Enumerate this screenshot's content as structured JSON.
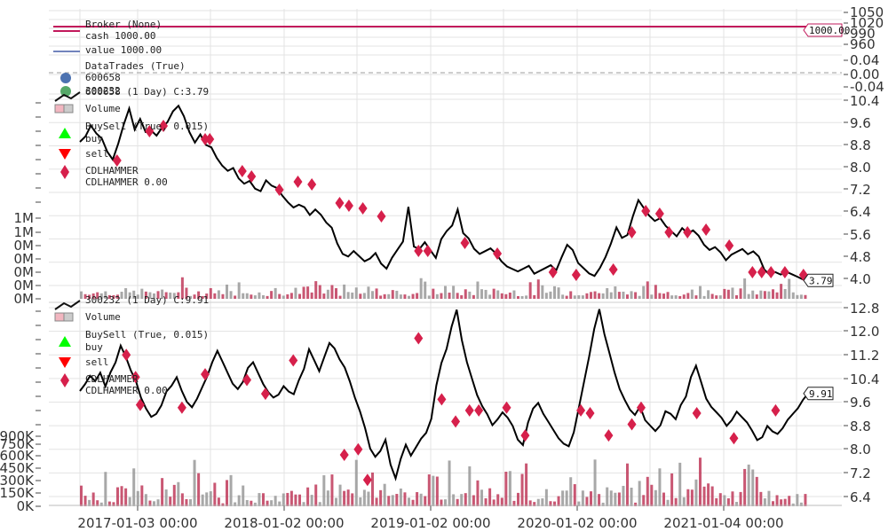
{
  "chart_data": [
    {
      "type": "line",
      "panel": "broker",
      "legend": [
        "Broker (None)",
        "cash 1000.00",
        "value 1000.00"
      ],
      "yticks": [
        "1050",
        "1020",
        "990",
        "960"
      ],
      "series": [
        {
          "name": "cash",
          "color": "#c2185b",
          "values": [
            1000,
            1000
          ]
        },
        {
          "name": "value",
          "color": "#1f3a93",
          "values": [
            1000,
            1000
          ]
        }
      ],
      "last_value_label": "1000.00",
      "ylim": [
        950,
        1050
      ]
    },
    {
      "type": "scatter",
      "panel": "datatrades",
      "legend": [
        "DataTrades (True)",
        "600658",
        "300232"
      ],
      "legend_colors": [
        "#4c72b0",
        "#55a868"
      ],
      "yticks": [
        "0.04",
        "0.00",
        "-0.04"
      ],
      "baseline": 0.0,
      "ylim": [
        -0.05,
        0.05
      ]
    },
    {
      "type": "line",
      "panel": "600658",
      "legend": [
        "600658 (1 Day) C:3.79",
        "Volume",
        "BuySell (True, 0.015)",
        "buy",
        "sell",
        "CDLHAMMER",
        "CDLHAMMER 0.00"
      ],
      "yticks": [
        "10.4",
        "9.6",
        "8.8",
        "8.0",
        "7.2",
        "6.4",
        "5.6",
        "4.8",
        "4.0"
      ],
      "volume_ticks": [
        "1M",
        "1M",
        "0M",
        "0M",
        "0M",
        "0M",
        "0M"
      ],
      "last_value_label": "3.79",
      "ylim": [
        3.6,
        10.6
      ],
      "close": [
        9.0,
        9.2,
        9.6,
        9.3,
        9.1,
        8.6,
        8.3,
        8.9,
        9.6,
        10.2,
        9.4,
        9.8,
        9.3,
        9.5,
        9.3,
        9.6,
        9.8,
        10.2,
        10.4,
        10.0,
        9.4,
        9.0,
        9.3,
        8.9,
        8.8,
        8.4,
        8.1,
        7.9,
        8.0,
        7.6,
        7.4,
        7.5,
        7.2,
        7.1,
        7.5,
        7.3,
        7.2,
        6.9,
        6.8,
        6.6,
        6.7,
        6.6,
        6.3,
        6.5,
        6.3,
        6.0,
        5.8,
        5.2,
        4.8,
        4.7,
        4.9,
        4.7,
        4.5,
        4.6,
        4.8,
        4.4,
        4.2,
        4.6,
        4.9,
        5.2,
        6.5,
        5.0,
        4.9,
        5.3,
        5.0,
        4.7,
        5.4,
        5.7,
        5.9,
        6.5,
        5.6,
        5.4,
        5.0,
        4.8,
        4.9,
        5.0,
        4.8,
        4.5,
        4.3,
        4.2,
        4.1,
        4.2,
        4.3,
        4.0,
        4.1,
        4.2,
        4.3,
        4.1,
        4.6,
        5.2,
        5.0,
        4.5,
        4.3,
        4.1,
        4.0,
        4.3,
        4.7,
        5.2,
        5.8,
        5.4,
        5.5,
        6.2,
        6.8,
        6.5,
        6.2,
        6.0,
        6.1,
        5.8,
        5.6,
        5.4,
        5.7,
        5.5,
        5.6,
        5.4,
        5.2,
        5.0,
        5.1,
        4.9,
        4.6,
        4.8,
        4.9,
        5.0,
        4.8,
        4.9,
        4.7,
        4.2,
        4.0,
        4.1,
        4.0,
        4.1,
        4.0,
        3.9,
        3.8,
        3.79
      ],
      "markers": [
        {
          "i": 8,
          "y": 8.3
        },
        {
          "i": 15,
          "y": 9.4
        },
        {
          "i": 18,
          "y": 9.6
        },
        {
          "i": 27,
          "y": 9.1
        },
        {
          "i": 28,
          "y": 9.1
        },
        {
          "i": 35,
          "y": 7.9
        },
        {
          "i": 37,
          "y": 7.7
        },
        {
          "i": 43,
          "y": 7.2
        },
        {
          "i": 47,
          "y": 7.5
        },
        {
          "i": 50,
          "y": 7.4
        },
        {
          "i": 56,
          "y": 6.7
        },
        {
          "i": 58,
          "y": 6.6
        },
        {
          "i": 61,
          "y": 6.5
        },
        {
          "i": 65,
          "y": 6.2
        },
        {
          "i": 73,
          "y": 4.9
        },
        {
          "i": 75,
          "y": 4.9
        },
        {
          "i": 83,
          "y": 5.2
        },
        {
          "i": 90,
          "y": 4.8
        },
        {
          "i": 102,
          "y": 4.1
        },
        {
          "i": 107,
          "y": 4.0
        },
        {
          "i": 115,
          "y": 4.2
        },
        {
          "i": 119,
          "y": 5.6
        },
        {
          "i": 122,
          "y": 6.4
        },
        {
          "i": 125,
          "y": 6.3
        },
        {
          "i": 127,
          "y": 5.6
        },
        {
          "i": 131,
          "y": 5.6
        },
        {
          "i": 135,
          "y": 5.7
        },
        {
          "i": 140,
          "y": 5.1
        },
        {
          "i": 145,
          "y": 4.1
        },
        {
          "i": 147,
          "y": 4.1
        },
        {
          "i": 149,
          "y": 4.1
        },
        {
          "i": 152,
          "y": 4.1
        },
        {
          "i": 156,
          "y": 4.0
        }
      ]
    },
    {
      "type": "line",
      "panel": "300232",
      "legend": [
        "300232 (1 Day) C:9.91",
        "Volume",
        "BuySell (True, 0.015)",
        "buy",
        "sell",
        "CDLHAMMER",
        "CDLHAMMER 0.00"
      ],
      "yticks": [
        "12.8",
        "12.0",
        "11.2",
        "10.4",
        "9.6",
        "8.8",
        "8.0",
        "7.2",
        "6.4"
      ],
      "volume_ticks": [
        "900K",
        "750K",
        "600K",
        "450K",
        "300K",
        "150K",
        "0K"
      ],
      "x_ticks": [
        "2017-01-03 00:00",
        "2018-01-02 00:00",
        "2019-01-02 00:00",
        "2020-01-02 00:00",
        "2021-01-04 00:00"
      ],
      "last_value_label": "9.91",
      "ylim": [
        6.2,
        13.0
      ],
      "close": [
        10.0,
        10.2,
        10.5,
        10.3,
        10.6,
        10.1,
        10.6,
        11.1,
        11.7,
        11.3,
        10.8,
        10.4,
        9.8,
        9.4,
        9.1,
        9.2,
        9.5,
        10.0,
        10.2,
        10.5,
        10.0,
        9.6,
        9.4,
        9.7,
        10.1,
        10.5,
        11.0,
        11.4,
        11.0,
        10.6,
        10.2,
        10.0,
        10.4,
        10.9,
        11.1,
        10.7,
        10.3,
        10.0,
        9.8,
        9.9,
        10.2,
        10.0,
        9.9,
        10.4,
        10.8,
        11.5,
        11.1,
        10.7,
        11.2,
        11.7,
        11.5,
        11.1,
        10.8,
        10.3,
        9.7,
        9.2,
        8.6,
        8.0,
        7.7,
        7.9,
        8.3,
        7.4,
        6.9,
        7.6,
        8.1,
        7.7,
        8.0,
        8.3,
        8.5,
        9.0,
        10.2,
        11.0,
        11.5,
        12.3,
        12.9,
        11.8,
        11.0,
        10.4,
        9.8,
        9.4,
        9.1,
        8.7,
        8.9,
        9.3,
        9.1,
        8.8,
        8.3,
        8.1,
        8.9,
        9.4,
        9.6,
        9.2,
        8.9,
        8.6,
        8.3,
        8.1,
        8.0,
        8.5,
        9.4,
        10.3,
        11.2,
        12.2,
        12.9,
        12.0,
        11.3,
        10.6,
        10.0,
        9.6,
        9.4,
        9.2,
        9.5,
        9.0,
        8.8,
        8.6,
        8.8,
        9.3,
        9.2,
        9.0,
        9.5,
        9.8,
        10.5,
        10.9,
        10.3,
        9.7,
        9.4,
        9.2,
        9.0,
        8.7,
        8.9,
        9.2,
        9.0,
        8.8,
        8.5,
        8.3,
        8.4,
        8.8,
        8.6,
        8.5,
        8.7,
        9.0,
        9.2,
        9.4,
        9.7,
        9.91
      ],
      "markers": [
        {
          "i": 10,
          "y": 11.3
        },
        {
          "i": 12,
          "y": 10.5
        },
        {
          "i": 13,
          "y": 9.5
        },
        {
          "i": 22,
          "y": 9.4
        },
        {
          "i": 27,
          "y": 10.6
        },
        {
          "i": 36,
          "y": 10.4
        },
        {
          "i": 40,
          "y": 9.9
        },
        {
          "i": 46,
          "y": 11.1
        },
        {
          "i": 57,
          "y": 7.7
        },
        {
          "i": 60,
          "y": 7.9
        },
        {
          "i": 62,
          "y": 6.8
        },
        {
          "i": 73,
          "y": 11.9
        },
        {
          "i": 78,
          "y": 9.7
        },
        {
          "i": 81,
          "y": 8.9
        },
        {
          "i": 84,
          "y": 9.3
        },
        {
          "i": 86,
          "y": 9.3
        },
        {
          "i": 92,
          "y": 9.4
        },
        {
          "i": 96,
          "y": 8.4
        },
        {
          "i": 108,
          "y": 9.3
        },
        {
          "i": 110,
          "y": 9.2
        },
        {
          "i": 114,
          "y": 8.4
        },
        {
          "i": 119,
          "y": 8.8
        },
        {
          "i": 121,
          "y": 9.4
        },
        {
          "i": 133,
          "y": 9.2
        },
        {
          "i": 141,
          "y": 8.3
        },
        {
          "i": 150,
          "y": 9.3
        }
      ]
    }
  ],
  "colors": {
    "grid": "#e3e3e3",
    "line": "#000000",
    "marker": "#d6204b",
    "volume_up": "#c0395a",
    "volume_down": "#999999",
    "broker": "#c2185b",
    "value": "#1f3a93",
    "dashed": "#b0b0b0"
  }
}
